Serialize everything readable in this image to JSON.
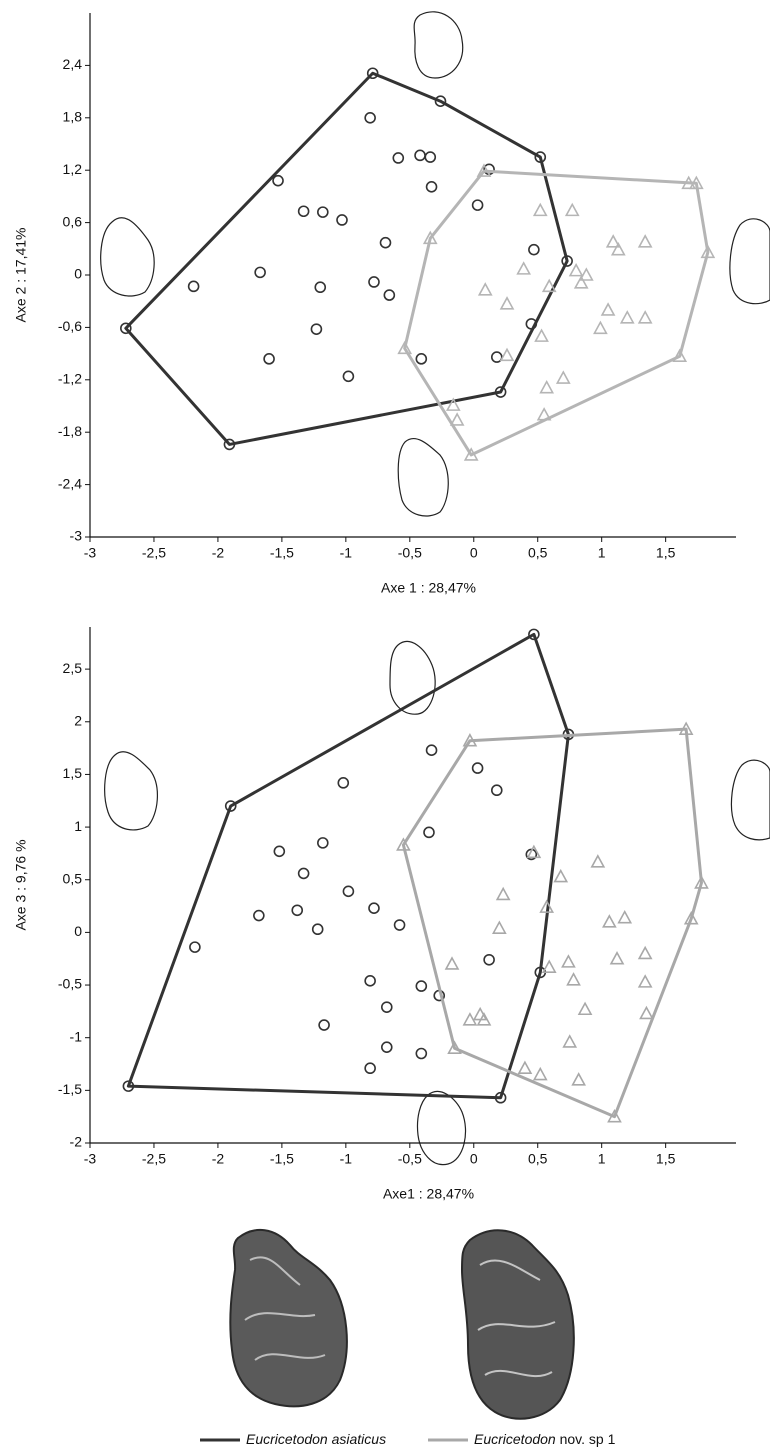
{
  "chart_data": [
    {
      "type": "scatter",
      "xlabel": "Axe 1 : 28,47%",
      "ylabel": "Axe 2 : 17,41%",
      "xlim": [
        -3,
        2.05
      ],
      "ylim": [
        -3,
        3
      ],
      "xticks": [
        -3,
        {
          "value": -2.5,
          "label": "-2,5"
        },
        -2,
        {
          "value": -1.5,
          "label": "-1,5"
        },
        -1,
        {
          "value": -0.5,
          "label": "-0,5"
        },
        0,
        {
          "value": 0.5,
          "label": "0,5"
        },
        1,
        {
          "value": 1.5,
          "label": "1,5"
        }
      ],
      "yticks": [
        -3,
        {
          "value": -2.4,
          "label": "-2,4"
        },
        {
          "value": -1.8,
          "label": "-1,8"
        },
        {
          "value": -1.2,
          "label": "-1,2"
        },
        {
          "value": -0.6,
          "label": "-0,6"
        },
        0,
        {
          "value": 0.6,
          "label": "0,6"
        },
        {
          "value": 1.2,
          "label": "1,2"
        },
        {
          "value": 1.8,
          "label": "1,8"
        },
        {
          "value": 2.4,
          "label": "2,4"
        }
      ],
      "series": [
        {
          "color": "#333333",
          "marker": "circle",
          "x": [
            -0.79,
            -0.26,
            0.52,
            0.73,
            0.21,
            -1.91,
            -2.72,
            -0.81,
            -1.53,
            -0.59,
            -0.42,
            -0.34,
            -0.33,
            0.12,
            0.03,
            -1.33,
            -1.18,
            -1.03,
            -0.69,
            0.47,
            -1.67,
            -2.19,
            -1.2,
            -0.78,
            -0.66,
            0.45,
            -1.23,
            -1.6,
            -0.41,
            0.18,
            -0.98
          ],
          "y": [
            2.31,
            1.99,
            1.35,
            0.16,
            -1.34,
            -1.94,
            -0.61,
            1.8,
            1.08,
            1.34,
            1.37,
            1.35,
            1.01,
            1.21,
            0.8,
            0.73,
            0.72,
            0.63,
            0.37,
            0.29,
            0.03,
            -0.13,
            -0.14,
            -0.08,
            -0.23,
            -0.56,
            -0.62,
            -0.96,
            -0.96,
            -0.94,
            -1.16
          ]
        },
        {
          "color": "#b5b5b5",
          "marker": "triangle",
          "x": [
            0.08,
            1.68,
            1.74,
            1.83,
            1.61,
            0.55,
            -0.02,
            -0.54,
            -0.34,
            0.52,
            0.77,
            1.09,
            1.13,
            1.34,
            0.39,
            0.8,
            0.88,
            0.84,
            0.59,
            0.09,
            0.26,
            0.53,
            0.99,
            1.05,
            1.2,
            1.34,
            0.26,
            0.7,
            0.57,
            -0.16,
            -0.13
          ],
          "y": [
            1.19,
            1.05,
            1.05,
            0.26,
            -0.93,
            -1.6,
            -2.06,
            -0.84,
            0.42,
            0.74,
            0.74,
            0.38,
            0.29,
            0.38,
            0.07,
            0.05,
            0,
            -0.09,
            -0.13,
            -0.17,
            -0.33,
            -0.7,
            -0.61,
            -0.4,
            -0.49,
            -0.49,
            -0.92,
            -1.18,
            -1.29,
            -1.49,
            -1.66
          ]
        }
      ]
    },
    {
      "type": "scatter",
      "xlabel": "Axe1 : 28,47%",
      "ylabel": "Axe 3 : 9,76 %",
      "xlim": [
        -3,
        2.05
      ],
      "ylim": [
        -2,
        2.9
      ],
      "xticks": [
        -3,
        {
          "value": -2.5,
          "label": "-2,5"
        },
        -2,
        {
          "value": -1.5,
          "label": "-1,5"
        },
        -1,
        {
          "value": -0.5,
          "label": "-0,5"
        },
        0,
        {
          "value": 0.5,
          "label": "0,5"
        },
        1,
        {
          "value": 1.5,
          "label": "1,5"
        }
      ],
      "yticks": [
        -2,
        {
          "value": -1.5,
          "label": "-1,5"
        },
        -1,
        {
          "value": -0.5,
          "label": "-0,5"
        },
        0,
        {
          "value": 0.5,
          "label": "0,5"
        },
        1,
        {
          "value": 1.5,
          "label": "1,5"
        },
        2,
        {
          "value": 2.5,
          "label": "2,5"
        }
      ],
      "series": [
        {
          "color": "#333333",
          "marker": "circle",
          "x": [
            0.47,
            0.74,
            0.52,
            0.21,
            -2.7,
            -1.9,
            -0.33,
            0.03,
            0.18,
            -1.02,
            -1.18,
            -1.52,
            -0.35,
            0.45,
            -1.33,
            -0.98,
            -1.68,
            -1.38,
            -0.78,
            -1.22,
            -0.58,
            -2.18,
            0.12,
            -0.81,
            -0.41,
            -0.27,
            -0.68,
            -1.17,
            -0.68,
            -0.81,
            -0.41
          ],
          "y": [
            2.83,
            1.88,
            -0.38,
            -1.57,
            -1.46,
            1.2,
            1.73,
            1.56,
            1.35,
            1.42,
            0.85,
            0.77,
            0.95,
            0.74,
            0.56,
            0.39,
            0.16,
            0.21,
            0.23,
            0.03,
            0.07,
            -0.14,
            -0.26,
            -0.46,
            -0.51,
            -0.6,
            -0.71,
            -0.88,
            -1.09,
            -1.29,
            -1.15
          ]
        },
        {
          "color": "#a8a8a8",
          "marker": "triangle",
          "x": [
            -0.03,
            1.66,
            1.78,
            1.35,
            1.1,
            -0.15,
            -0.55,
            0.47,
            0.23,
            0.2,
            0.57,
            0.68,
            0.97,
            1.06,
            1.18,
            1.7,
            1.12,
            1.34,
            1.34,
            0.74,
            0.78,
            0.59,
            0.87,
            -0.17,
            0.05,
            0.08,
            -0.03,
            0.75,
            0.4,
            0.52,
            0.82
          ],
          "y": [
            1.82,
            1.93,
            0.47,
            -0.77,
            -1.75,
            -1.1,
            0.83,
            0.76,
            0.36,
            0.04,
            0.24,
            0.53,
            0.67,
            0.1,
            0.14,
            0.13,
            -0.25,
            -0.2,
            -0.47,
            -0.28,
            -0.45,
            -0.33,
            -0.73,
            -0.3,
            -0.78,
            -0.83,
            -0.83,
            -1.04,
            -1.29,
            -1.35,
            -1.4
          ]
        }
      ]
    }
  ],
  "legend": [
    {
      "italic": "Eucricetodon asiaticus",
      "color": "#333333"
    },
    {
      "italic": "Eucricetodon",
      "text": "nov. sp 1",
      "color": "#a8a8a8"
    }
  ]
}
